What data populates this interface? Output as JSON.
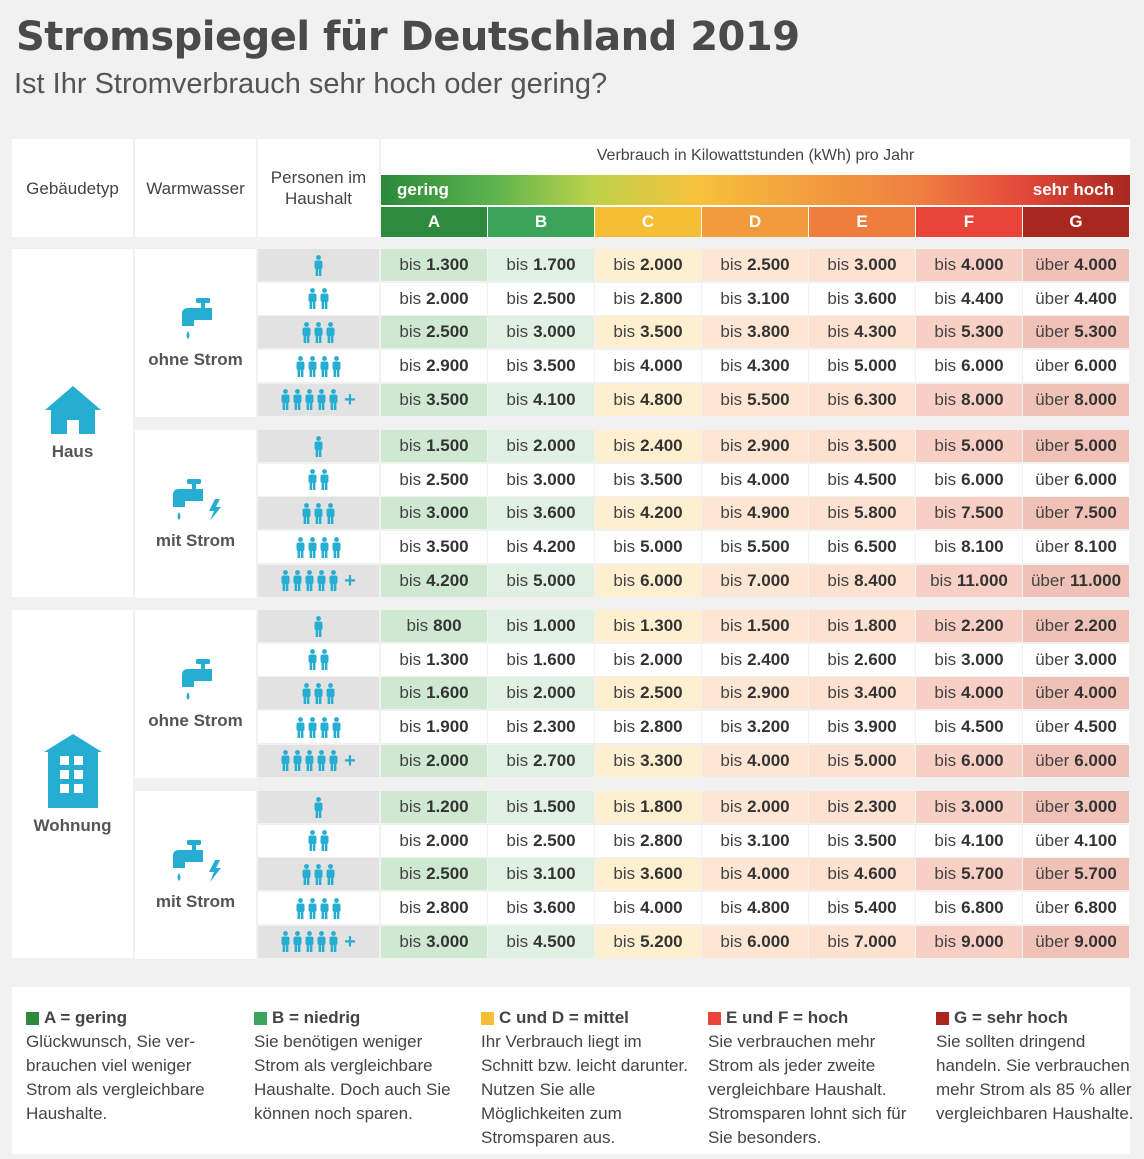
{
  "title": "Stromspiegel für Deutschland 2019",
  "subtitle": "Ist Ihr Stromverbrauch sehr hoch oder gering?",
  "header": {
    "gebaeudetyp": "Gebäudetyp",
    "warmwasser": "Warmwasser",
    "personen": "Personen im Haushalt",
    "verbrauch": "Verbrauch in Kilowattstunden (kWh) pro Jahr",
    "gering": "gering",
    "sehr_hoch": "sehr hoch"
  },
  "colors": {
    "grade_header": [
      "#2d8a3e",
      "#3aa55a",
      "#f6be34",
      "#f29b3c",
      "#ee7d3e",
      "#e9443a",
      "#a8281f"
    ],
    "grade_cell": [
      "#cfe8d2",
      "#e0f0e2",
      "#fdefd0",
      "#fde6d3",
      "#fde2d2",
      "#f7cfc4",
      "#f0c2b7"
    ],
    "icon": "#25aed1"
  },
  "icons": {
    "haus": "house-icon",
    "wohnung": "apartment-building-icon",
    "tap": "water-tap-icon",
    "lightning": "lightning-icon",
    "person": "person-icon"
  },
  "plus_symbol": "+",
  "chart_data": {
    "type": "table",
    "title": "Stromspiegel für Deutschland 2019",
    "subtitle": "Ist Ihr Stromverbrauch sehr hoch oder gering?",
    "unit_label": "Verbrauch in Kilowattstunden (kWh) pro Jahr",
    "grades": [
      "A",
      "B",
      "C",
      "D",
      "E",
      "F",
      "G"
    ],
    "prefix_bis": "bis",
    "prefix_ueber": "über",
    "blocks": [
      {
        "gebaeudetyp": "Haus",
        "warmwasser": "ohne Strom",
        "rows": [
          {
            "persons": 1,
            "values": [
              "1.300",
              "1.700",
              "2.000",
              "2.500",
              "3.000",
              "4.000",
              "4.000"
            ]
          },
          {
            "persons": 2,
            "values": [
              "2.000",
              "2.500",
              "2.800",
              "3.100",
              "3.600",
              "4.400",
              "4.400"
            ]
          },
          {
            "persons": 3,
            "values": [
              "2.500",
              "3.000",
              "3.500",
              "3.800",
              "4.300",
              "5.300",
              "5.300"
            ]
          },
          {
            "persons": 4,
            "values": [
              "2.900",
              "3.500",
              "4.000",
              "4.300",
              "5.000",
              "6.000",
              "6.000"
            ]
          },
          {
            "persons": 5,
            "plus": true,
            "values": [
              "3.500",
              "4.100",
              "4.800",
              "5.500",
              "6.300",
              "8.000",
              "8.000"
            ]
          }
        ]
      },
      {
        "gebaeudetyp": "Haus",
        "warmwasser": "mit Strom",
        "rows": [
          {
            "persons": 1,
            "values": [
              "1.500",
              "2.000",
              "2.400",
              "2.900",
              "3.500",
              "5.000",
              "5.000"
            ]
          },
          {
            "persons": 2,
            "values": [
              "2.500",
              "3.000",
              "3.500",
              "4.000",
              "4.500",
              "6.000",
              "6.000"
            ]
          },
          {
            "persons": 3,
            "values": [
              "3.000",
              "3.600",
              "4.200",
              "4.900",
              "5.800",
              "7.500",
              "7.500"
            ]
          },
          {
            "persons": 4,
            "values": [
              "3.500",
              "4.200",
              "5.000",
              "5.500",
              "6.500",
              "8.100",
              "8.100"
            ]
          },
          {
            "persons": 5,
            "plus": true,
            "values": [
              "4.200",
              "5.000",
              "6.000",
              "7.000",
              "8.400",
              "11.000",
              "11.000"
            ]
          }
        ]
      },
      {
        "gebaeudetyp": "Wohnung",
        "warmwasser": "ohne Strom",
        "rows": [
          {
            "persons": 1,
            "values": [
              "800",
              "1.000",
              "1.300",
              "1.500",
              "1.800",
              "2.200",
              "2.200"
            ]
          },
          {
            "persons": 2,
            "values": [
              "1.300",
              "1.600",
              "2.000",
              "2.400",
              "2.600",
              "3.000",
              "3.000"
            ]
          },
          {
            "persons": 3,
            "values": [
              "1.600",
              "2.000",
              "2.500",
              "2.900",
              "3.400",
              "4.000",
              "4.000"
            ]
          },
          {
            "persons": 4,
            "values": [
              "1.900",
              "2.300",
              "2.800",
              "3.200",
              "3.900",
              "4.500",
              "4.500"
            ]
          },
          {
            "persons": 5,
            "plus": true,
            "values": [
              "2.000",
              "2.700",
              "3.300",
              "4.000",
              "5.000",
              "6.000",
              "6.000"
            ]
          }
        ]
      },
      {
        "gebaeudetyp": "Wohnung",
        "warmwasser": "mit Strom",
        "rows": [
          {
            "persons": 1,
            "values": [
              "1.200",
              "1.500",
              "1.800",
              "2.000",
              "2.300",
              "3.000",
              "3.000"
            ]
          },
          {
            "persons": 2,
            "values": [
              "2.000",
              "2.500",
              "2.800",
              "3.100",
              "3.500",
              "4.100",
              "4.100"
            ]
          },
          {
            "persons": 3,
            "values": [
              "2.500",
              "3.100",
              "3.600",
              "4.000",
              "4.600",
              "5.700",
              "5.700"
            ]
          },
          {
            "persons": 4,
            "values": [
              "2.800",
              "3.600",
              "4.000",
              "4.800",
              "5.400",
              "6.800",
              "6.800"
            ]
          },
          {
            "persons": 5,
            "plus": true,
            "values": [
              "3.000",
              "4.500",
              "5.200",
              "6.000",
              "7.000",
              "9.000",
              "9.000"
            ]
          }
        ]
      }
    ]
  },
  "legend": [
    {
      "title": "A = gering",
      "color": "#2d8a3e",
      "text": "Glückwunsch, Sie ver­brauchen viel weniger Strom als vergleichbare Haushalte."
    },
    {
      "title": "B = niedrig",
      "color": "#3aa55a",
      "text": "Sie benötigen weniger Strom als vergleichbare Haushalte. Doch auch Sie können noch sparen."
    },
    {
      "title": "C und D = mittel",
      "color": "#f6be34",
      "text": "Ihr Verbrauch liegt im Schnitt bzw. leicht darunter. Nutzen Sie alle Möglichkeiten zum Stromsparen aus."
    },
    {
      "title": "E und F = hoch",
      "color": "#e9443a",
      "text": "Sie verbrauchen mehr Strom als jeder zweite vergleichbare Haushalt. Stromsparen lohnt sich für Sie besonders."
    },
    {
      "title": "G = sehr hoch",
      "color": "#a8281f",
      "text": "Sie sollten dringend handeln. Sie verbrau­chen mehr Strom als 85 % aller vergleich­baren Haushalte."
    }
  ]
}
